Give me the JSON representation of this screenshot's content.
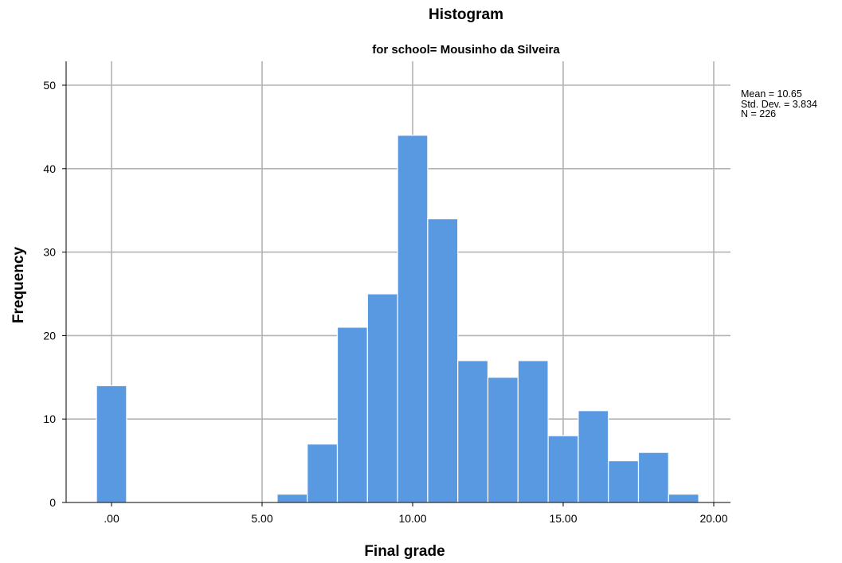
{
  "chart_data": {
    "type": "bar",
    "title": "Histogram",
    "subtitle": "for school= Mousinho da Silveira",
    "xlabel": "Final grade",
    "ylabel": "Frequency",
    "xlim": [
      -1.0,
      20.5
    ],
    "ylim": [
      0,
      52
    ],
    "x_ticks": [
      0,
      5,
      10,
      15,
      20
    ],
    "x_tick_labels": [
      ".00",
      "5.00",
      "10.00",
      "15.00",
      "20.00"
    ],
    "y_ticks": [
      0,
      10,
      20,
      30,
      40,
      50
    ],
    "y_tick_labels": [
      "0",
      "10",
      "20",
      "30",
      "40",
      "50"
    ],
    "grid": true,
    "bar_color": "#5899e2",
    "bins": [
      {
        "x0": -0.5,
        "x1": 0.5,
        "count": 14
      },
      {
        "x0": 5.5,
        "x1": 6.5,
        "count": 1
      },
      {
        "x0": 6.5,
        "x1": 7.5,
        "count": 7
      },
      {
        "x0": 7.5,
        "x1": 8.5,
        "count": 21
      },
      {
        "x0": 8.5,
        "x1": 9.5,
        "count": 25
      },
      {
        "x0": 9.5,
        "x1": 10.5,
        "count": 44
      },
      {
        "x0": 10.5,
        "x1": 11.5,
        "count": 34
      },
      {
        "x0": 11.5,
        "x1": 12.5,
        "count": 17
      },
      {
        "x0": 12.5,
        "x1": 13.5,
        "count": 15
      },
      {
        "x0": 13.5,
        "x1": 14.5,
        "count": 17
      },
      {
        "x0": 14.5,
        "x1": 15.5,
        "count": 8
      },
      {
        "x0": 15.5,
        "x1": 16.5,
        "count": 11
      },
      {
        "x0": 16.5,
        "x1": 17.5,
        "count": 5
      },
      {
        "x0": 17.5,
        "x1": 18.5,
        "count": 6
      },
      {
        "x0": 18.5,
        "x1": 19.5,
        "count": 1
      }
    ],
    "stats": {
      "mean": "Mean = 10.65",
      "std": "Std. Dev. = 3.834",
      "n": "N = 226"
    }
  }
}
